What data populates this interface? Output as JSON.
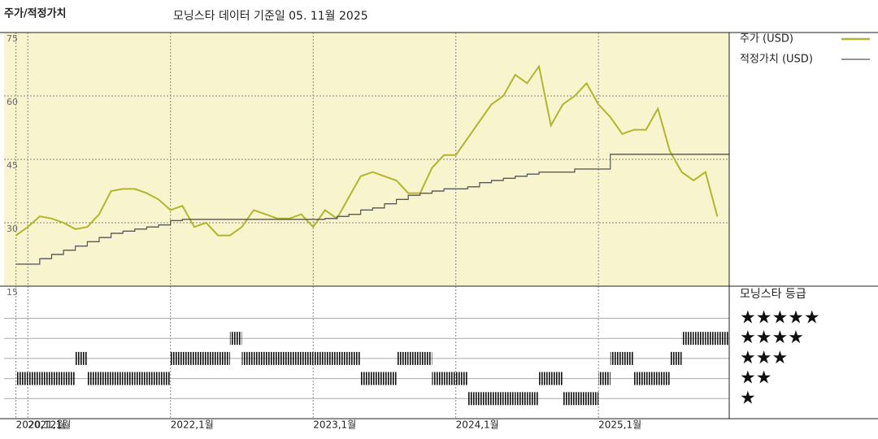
{
  "chart_data": [
    {
      "type": "line",
      "title": "주가/적정가치",
      "subtitle": "모닝스타 데이터 기준일 05. 11월 2025",
      "x": [
        "2020-12",
        "2021-01",
        "2021-02",
        "2021-03",
        "2021-04",
        "2021-05",
        "2021-06",
        "2021-07",
        "2021-08",
        "2021-09",
        "2021-10",
        "2021-11",
        "2021-12",
        "2022-01",
        "2022-02",
        "2022-03",
        "2022-04",
        "2022-05",
        "2022-06",
        "2022-07",
        "2022-08",
        "2022-09",
        "2022-10",
        "2022-11",
        "2022-12",
        "2023-01",
        "2023-02",
        "2023-03",
        "2023-04",
        "2023-05",
        "2023-06",
        "2023-07",
        "2023-08",
        "2023-09",
        "2023-10",
        "2023-11",
        "2023-12",
        "2024-01",
        "2024-02",
        "2024-03",
        "2024-04",
        "2024-05",
        "2024-06",
        "2024-07",
        "2024-08",
        "2024-09",
        "2024-10",
        "2024-11",
        "2024-12",
        "2025-01",
        "2025-02",
        "2025-03",
        "2025-04",
        "2025-05",
        "2025-06",
        "2025-07",
        "2025-08",
        "2025-09",
        "2025-10",
        "2025-11"
      ],
      "xlim": [
        "2020-11",
        "2025-12"
      ],
      "xticks": [
        {
          "value": "2020-12",
          "label": "2020,12월"
        },
        {
          "value": "2021-01",
          "label": "2021,1월"
        },
        {
          "value": "2022-01",
          "label": "2022,1월"
        },
        {
          "value": "2023-01",
          "label": "2023,1월"
        },
        {
          "value": "2024-01",
          "label": "2024,1월"
        },
        {
          "value": "2025-01",
          "label": "2025,1월"
        }
      ],
      "ylim": [
        15,
        75
      ],
      "yticks": [
        15,
        30,
        45,
        60,
        75
      ],
      "grid": true,
      "background": "#f8f4cd",
      "series": [
        {
          "name": "주가 (USD)",
          "color": "#b3b52a",
          "values": [
            27,
            29,
            31.5,
            31,
            30,
            28.5,
            29,
            32,
            37.5,
            38,
            38,
            37,
            35.5,
            33,
            34,
            29,
            30,
            27,
            27,
            29,
            33,
            32,
            31,
            31,
            32,
            29,
            33,
            31,
            36,
            41,
            42,
            41,
            40,
            37,
            37,
            43,
            46,
            46,
            50,
            54,
            58,
            60,
            65,
            63,
            67,
            53,
            58,
            60,
            63,
            58,
            55,
            51,
            52,
            52,
            57,
            47,
            42,
            40,
            42,
            31.5
          ]
        },
        {
          "name": "적정가치 (USD)",
          "color": "#555555",
          "step": "after",
          "values": [
            20.2,
            20.2,
            21.5,
            22.5,
            23.5,
            24.5,
            25.5,
            26.5,
            27.5,
            28,
            28.5,
            29,
            29.5,
            30.5,
            30.8,
            30.8,
            30.8,
            30.8,
            30.8,
            30.8,
            30.8,
            30.8,
            30.8,
            30.8,
            30.8,
            30.8,
            31,
            31.5,
            32,
            33,
            33.5,
            34.5,
            35.5,
            36.5,
            37,
            37.5,
            38,
            38,
            38.5,
            39.5,
            40,
            40.5,
            41,
            41.5,
            42,
            42,
            42,
            42.7,
            42.7,
            42.7,
            46.2,
            46.2,
            46.2,
            46.2,
            46.2,
            46.2,
            46.2,
            46.2,
            46.2,
            46.2
          ]
        }
      ]
    },
    {
      "type": "rating",
      "title": "모닝스타 등급",
      "values": [
        2,
        2,
        2,
        2,
        2,
        3,
        2,
        2,
        2,
        2,
        2,
        2,
        2,
        3,
        3,
        3,
        3,
        3,
        4,
        3,
        3,
        3,
        3,
        3,
        3,
        3,
        3,
        3,
        3,
        2,
        2,
        2,
        3,
        3,
        3,
        2,
        2,
        2,
        1,
        1,
        1,
        1,
        1,
        1,
        2,
        2,
        1,
        1,
        1,
        2,
        3,
        3,
        2,
        2,
        2,
        3,
        4,
        4,
        4,
        4
      ],
      "ylim": [
        0,
        6.6
      ],
      "yticks": [
        {
          "value": 1,
          "label": "★"
        },
        {
          "value": 2,
          "label": "★★"
        },
        {
          "value": 3,
          "label": "★★★"
        },
        {
          "value": 4,
          "label": "★★★★"
        },
        {
          "value": 5,
          "label": "★★★★★"
        }
      ]
    }
  ]
}
